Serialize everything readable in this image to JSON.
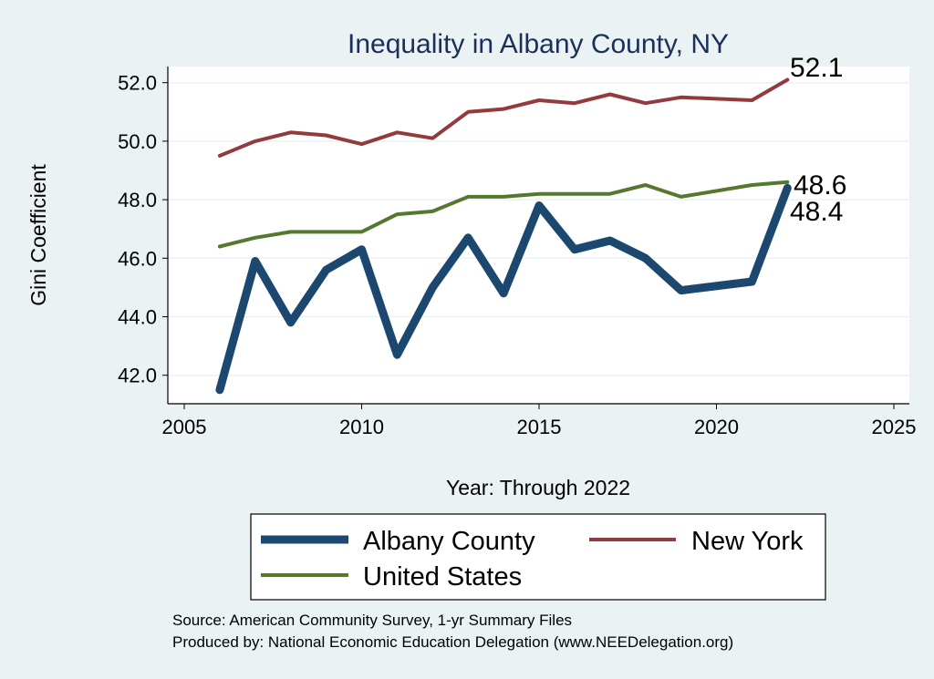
{
  "chart_data": {
    "type": "line",
    "title": "Inequality in Albany County, NY",
    "xlabel": "Year: Through 2022",
    "ylabel": "Gini Coefficient",
    "xlim": [
      2005,
      2025
    ],
    "ylim": [
      42,
      52
    ],
    "xticks": [
      2005,
      2010,
      2015,
      2020,
      2025
    ],
    "yticks": [
      42,
      44,
      46,
      48,
      50,
      52
    ],
    "ytick_labels": [
      "42.0",
      "44.0",
      "46.0",
      "48.0",
      "50.0",
      "52.0"
    ],
    "grid": true,
    "legend_placement": "bottom",
    "series": [
      {
        "name": "Albany County",
        "color": "#1c4870",
        "width": 9,
        "x": [
          2006,
          2007,
          2008,
          2009,
          2010,
          2011,
          2012,
          2013,
          2014,
          2015,
          2016,
          2017,
          2018,
          2019,
          2021,
          2022
        ],
        "values": [
          41.5,
          45.9,
          43.8,
          45.6,
          46.3,
          42.7,
          45.0,
          46.7,
          44.8,
          47.8,
          46.3,
          46.6,
          46.0,
          44.9,
          45.2,
          48.4
        ],
        "end_label": "48.4"
      },
      {
        "name": "New York",
        "color": "#923a3e",
        "width": 4,
        "x": [
          2006,
          2007,
          2008,
          2009,
          2010,
          2011,
          2012,
          2013,
          2014,
          2015,
          2016,
          2017,
          2018,
          2019,
          2021,
          2022
        ],
        "values": [
          49.5,
          50.0,
          50.3,
          50.2,
          49.9,
          50.3,
          50.1,
          51.0,
          51.1,
          51.4,
          51.3,
          51.6,
          51.3,
          51.5,
          51.4,
          52.1
        ],
        "end_label": "52.1"
      },
      {
        "name": "United States",
        "color": "#55782f",
        "width": 4,
        "x": [
          2006,
          2007,
          2008,
          2009,
          2010,
          2011,
          2012,
          2013,
          2014,
          2015,
          2016,
          2017,
          2018,
          2019,
          2021,
          2022
        ],
        "values": [
          46.4,
          46.7,
          46.9,
          46.9,
          46.9,
          47.5,
          47.6,
          48.1,
          48.1,
          48.2,
          48.2,
          48.2,
          48.5,
          48.1,
          48.5,
          48.6
        ],
        "end_label": "48.6"
      }
    ],
    "notes": [
      "Source: American Community Survey, 1-yr Summary Files",
      "Produced by: National Economic Education Delegation (www.NEEDelegation.org)"
    ]
  }
}
